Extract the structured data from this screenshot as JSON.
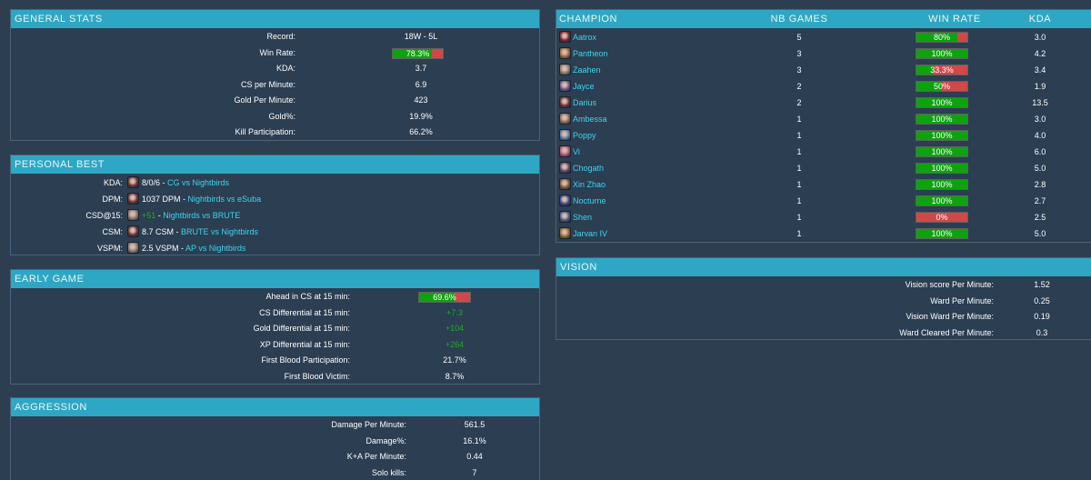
{
  "general_stats": {
    "title": "GENERAL STATS",
    "rows": [
      {
        "label": "Record:",
        "value": "18W - 5L"
      },
      {
        "label": "Win Rate:",
        "value": "78.3%",
        "bar": true,
        "fill": 0.783
      },
      {
        "label": "KDA:",
        "value": "3.7"
      },
      {
        "label": "CS per Minute:",
        "value": "6.9"
      },
      {
        "label": "Gold Per Minute:",
        "value": "423"
      },
      {
        "label": "Gold%:",
        "value": "19.9%"
      },
      {
        "label": "Kill Participation:",
        "value": "66.2%"
      }
    ]
  },
  "personal_best": {
    "title": "PERSONAL BEST",
    "rows": [
      {
        "label": "KDA:",
        "icon": "darius-icon",
        "icon_color": "#6a3438",
        "stat": "8/0/6",
        "stat_green": false,
        "sep": " - ",
        "match": "CG vs Nightbirds"
      },
      {
        "label": "DPM:",
        "icon": "darius-icon",
        "icon_color": "#6a3438",
        "stat": "1037 DPM",
        "stat_green": false,
        "sep": " - ",
        "match": "Nightbirds vs eSuba"
      },
      {
        "label": "CSD@15:",
        "icon": "zaahen-icon",
        "icon_color": "#8a7a70",
        "stat": "+51",
        "stat_green": true,
        "sep": " - ",
        "match": "Nightbirds vs BRUTE"
      },
      {
        "label": "CSM:",
        "icon": "darius-icon",
        "icon_color": "#6a3438",
        "stat": "8.7 CSM",
        "stat_green": false,
        "sep": " - ",
        "match": "BRUTE vs Nightbirds"
      },
      {
        "label": "VSPM:",
        "icon": "zaahen-icon",
        "icon_color": "#8a7a70",
        "stat": "2.5 VSPM",
        "stat_green": false,
        "sep": " - ",
        "match": "AP vs Nightbirds"
      }
    ]
  },
  "early_game": {
    "title": "EARLY GAME",
    "rows": [
      {
        "label": "Ahead in CS at 15 min:",
        "value": "69.6%",
        "bar": true,
        "fill": 0.696
      },
      {
        "label": "CS Differential at 15 min:",
        "value": "+7.3",
        "green": true
      },
      {
        "label": "Gold Differential at 15 min:",
        "value": "+104",
        "green": true
      },
      {
        "label": "XP Differential at 15 min:",
        "value": "+264",
        "green": true
      },
      {
        "label": "First Blood Participation:",
        "value": "21.7%"
      },
      {
        "label": "First Blood Victim:",
        "value": "8.7%"
      }
    ]
  },
  "aggression": {
    "title": "AGGRESSION",
    "rows": [
      {
        "label": "Damage Per Minute:",
        "value": "561.5"
      },
      {
        "label": "Damage%:",
        "value": "16.1%"
      },
      {
        "label": "K+A Per Minute:",
        "value": "0.44"
      },
      {
        "label": "Solo kills:",
        "value": "7"
      }
    ]
  },
  "champions": {
    "headers": {
      "champion": "CHAMPION",
      "games": "NB GAMES",
      "winrate": "WIN RATE",
      "kda": "KDA"
    },
    "rows": [
      {
        "name": "Aatrox",
        "icon": "aatrox-icon",
        "icon_color": "#7a2a30",
        "games": "5",
        "winrate": "80%",
        "fill": 0.8,
        "kda": "3.0"
      },
      {
        "name": "Pantheon",
        "icon": "pantheon-icon",
        "icon_color": "#9a6a3a",
        "games": "3",
        "winrate": "100%",
        "fill": 1.0,
        "kda": "4.2"
      },
      {
        "name": "Zaahen",
        "icon": "zaahen-icon",
        "icon_color": "#8a7a70",
        "games": "3",
        "winrate": "33.3%",
        "fill": 0.333,
        "kda": "3.4"
      },
      {
        "name": "Jayce",
        "icon": "jayce-icon",
        "icon_color": "#6a5a8a",
        "games": "2",
        "winrate": "50%",
        "fill": 0.5,
        "kda": "1.9"
      },
      {
        "name": "Darius",
        "icon": "darius-icon",
        "icon_color": "#6a3438",
        "games": "2",
        "winrate": "100%",
        "fill": 1.0,
        "kda": "13.5"
      },
      {
        "name": "Ambessa",
        "icon": "ambessa-icon",
        "icon_color": "#8a6a5a",
        "games": "1",
        "winrate": "100%",
        "fill": 1.0,
        "kda": "3.0"
      },
      {
        "name": "Poppy",
        "icon": "poppy-icon",
        "icon_color": "#5a7aaa",
        "games": "1",
        "winrate": "100%",
        "fill": 1.0,
        "kda": "4.0"
      },
      {
        "name": "Vi",
        "icon": "vi-icon",
        "icon_color": "#aa5a7a",
        "games": "1",
        "winrate": "100%",
        "fill": 1.0,
        "kda": "6.0"
      },
      {
        "name": "Chogath",
        "icon": "chogath-icon",
        "icon_color": "#5a4a6a",
        "games": "1",
        "winrate": "100%",
        "fill": 1.0,
        "kda": "5.0"
      },
      {
        "name": "Xin Zhao",
        "icon": "xin-zhao-icon",
        "icon_color": "#7a5a3a",
        "games": "1",
        "winrate": "100%",
        "fill": 1.0,
        "kda": "2.8"
      },
      {
        "name": "Nocturne",
        "icon": "nocturne-icon",
        "icon_color": "#3a4a8a",
        "games": "1",
        "winrate": "100%",
        "fill": 1.0,
        "kda": "2.7"
      },
      {
        "name": "Shen",
        "icon": "shen-icon",
        "icon_color": "#4a5a8a",
        "games": "1",
        "winrate": "0%",
        "fill": 0.0,
        "kda": "2.5"
      },
      {
        "name": "Jarvan IV",
        "icon": "jarvan-iv-icon",
        "icon_color": "#8a6a2a",
        "games": "1",
        "winrate": "100%",
        "fill": 1.0,
        "kda": "5.0"
      }
    ]
  },
  "vision": {
    "title": "VISION",
    "rows": [
      {
        "label": "Vision score Per Minute:",
        "value": "1.52"
      },
      {
        "label": "Ward Per Minute:",
        "value": "0.25"
      },
      {
        "label": "Vision Ward Per Minute:",
        "value": "0.19"
      },
      {
        "label": "Ward Cleared Per Minute:",
        "value": "0.3"
      }
    ]
  },
  "colors": {
    "header": "#2ea7c4",
    "panel": "#2b3e52",
    "background": "#2c3e50",
    "bar_fill": "#0ea20e",
    "bar_empty": "#d04848",
    "link": "#3dd6ee",
    "positive": "#27a827"
  }
}
